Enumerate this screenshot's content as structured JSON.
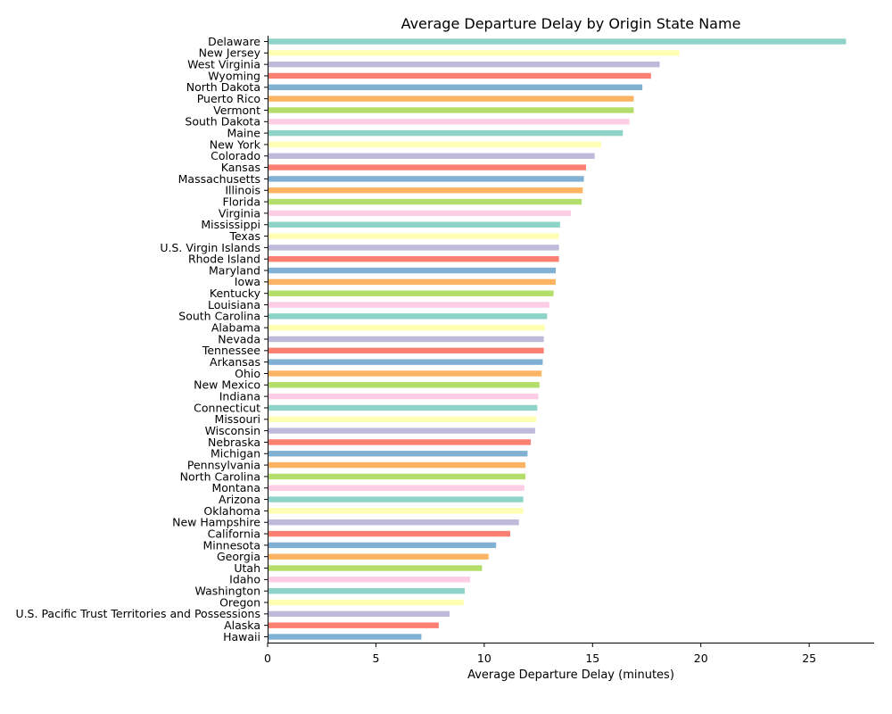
{
  "chart_data": {
    "type": "bar",
    "orientation": "horizontal",
    "title": "Average Departure Delay by Origin State Name",
    "xlabel": "Average Departure Delay (minutes)",
    "ylabel": "",
    "xlim": [
      0,
      28
    ],
    "xticks": [
      0,
      5,
      10,
      15,
      20,
      25
    ],
    "grid": false,
    "legend": "none",
    "palette": [
      "#8dd3c7",
      "#ffffb3",
      "#bebada",
      "#fb8072",
      "#80b1d3",
      "#fdb462",
      "#b3de69",
      "#fccde5"
    ],
    "categories": [
      "Delaware",
      "New Jersey",
      "West Virginia",
      "Wyoming",
      "North Dakota",
      "Puerto Rico",
      "Vermont",
      "South Dakota",
      "Maine",
      "New York",
      "Colorado",
      "Kansas",
      "Massachusetts",
      "Illinois",
      "Florida",
      "Virginia",
      "Mississippi",
      "Texas",
      "U.S. Virgin Islands",
      "Rhode Island",
      "Maryland",
      "Iowa",
      "Kentucky",
      "Louisiana",
      "South Carolina",
      "Alabama",
      "Nevada",
      "Tennessee",
      "Arkansas",
      "Ohio",
      "New Mexico",
      "Indiana",
      "Connecticut",
      "Missouri",
      "Wisconsin",
      "Nebraska",
      "Michigan",
      "Pennsylvania",
      "North Carolina",
      "Montana",
      "Arizona",
      "Oklahoma",
      "New Hampshire",
      "California",
      "Minnesota",
      "Georgia",
      "Utah",
      "Idaho",
      "Washington",
      "Oregon",
      "U.S. Pacific Trust Territories and Possessions",
      "Alaska",
      "Hawaii"
    ],
    "values": [
      26.7,
      19.0,
      18.1,
      17.7,
      17.3,
      16.9,
      16.9,
      16.7,
      16.4,
      15.4,
      15.1,
      14.7,
      14.6,
      14.55,
      14.5,
      14.0,
      13.5,
      13.45,
      13.45,
      13.45,
      13.3,
      13.3,
      13.2,
      13.0,
      12.9,
      12.8,
      12.75,
      12.75,
      12.7,
      12.65,
      12.55,
      12.5,
      12.45,
      12.4,
      12.35,
      12.15,
      12.0,
      11.9,
      11.9,
      11.85,
      11.8,
      11.8,
      11.6,
      11.2,
      10.55,
      10.2,
      9.9,
      9.35,
      9.1,
      9.05,
      8.4,
      7.9,
      7.1
    ]
  }
}
